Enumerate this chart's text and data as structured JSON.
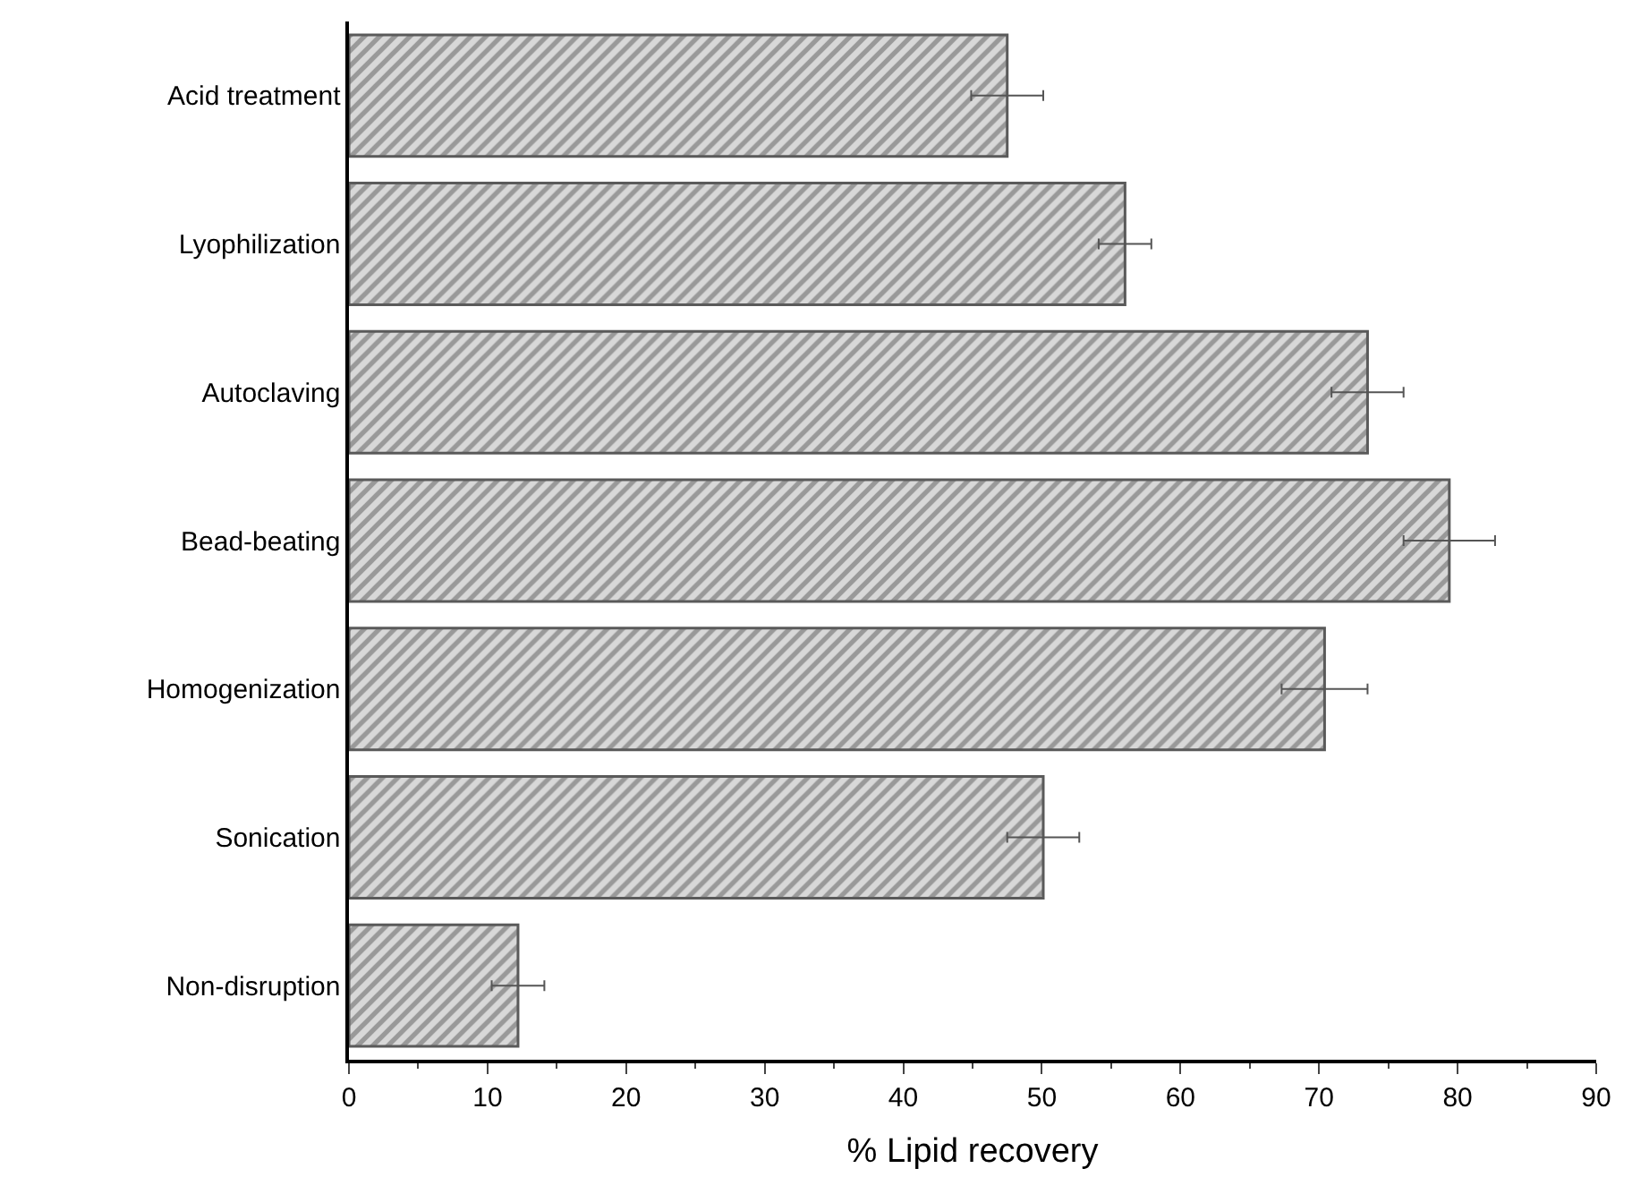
{
  "chart_data": {
    "type": "bar",
    "orientation": "horizontal",
    "xlabel": "% Lipid recovery",
    "categories": [
      "Acid treatment",
      "Lyophilization",
      "Autoclaving",
      "Bead-beating",
      "Homogenization",
      "Sonication",
      "Non-disruption"
    ],
    "values": [
      47.5,
      56.0,
      73.5,
      79.4,
      70.4,
      50.1,
      12.2
    ],
    "errors": [
      2.6,
      1.9,
      2.6,
      3.3,
      3.1,
      2.6,
      1.9
    ],
    "color": "#5a5a5a",
    "xlim": [
      0,
      90
    ],
    "xticks": [
      0,
      10,
      20,
      30,
      40,
      50,
      60,
      70,
      80,
      90
    ]
  }
}
